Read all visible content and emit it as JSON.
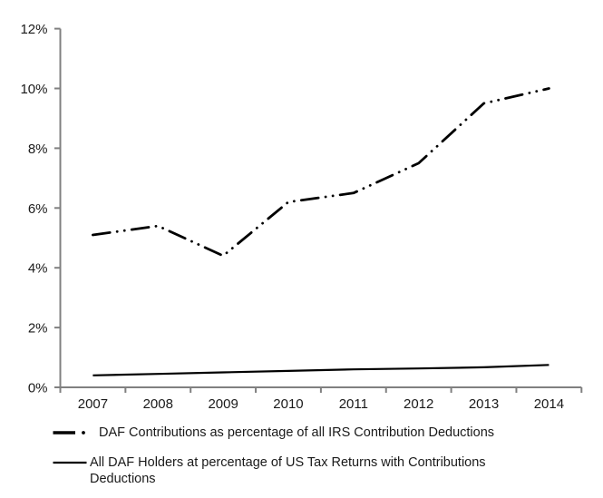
{
  "chart_data": {
    "type": "line",
    "title": "",
    "xlabel": "",
    "ylabel": "",
    "categories": [
      "2007",
      "2008",
      "2009",
      "2010",
      "2011",
      "2012",
      "2013",
      "2014"
    ],
    "series": [
      {
        "name": "DAF Contributions as percentage of all IRS Contribution Deductions",
        "style": "dash-dot-dot",
        "color": "#000000",
        "values": [
          5.1,
          5.4,
          4.4,
          6.2,
          6.5,
          7.5,
          9.5,
          10.0
        ]
      },
      {
        "name": "All DAF Holders at percentage of US Tax Returns with Contributions Deductions",
        "style": "solid",
        "color": "#000000",
        "values": [
          0.4,
          0.45,
          0.5,
          0.55,
          0.6,
          0.63,
          0.67,
          0.75
        ]
      }
    ],
    "ylim": [
      0,
      12
    ],
    "y_ticks": [
      {
        "value": 0,
        "label": "0%"
      },
      {
        "value": 2,
        "label": "2%"
      },
      {
        "value": 4,
        "label": "4%"
      },
      {
        "value": 6,
        "label": "6%"
      },
      {
        "value": 8,
        "label": "8%"
      },
      {
        "value": 10,
        "label": "10%"
      },
      {
        "value": 12,
        "label": "12%"
      }
    ],
    "grid": false,
    "legend_position": "bottom",
    "axis_color": "#808080",
    "text_color": "#1a1a1a"
  }
}
